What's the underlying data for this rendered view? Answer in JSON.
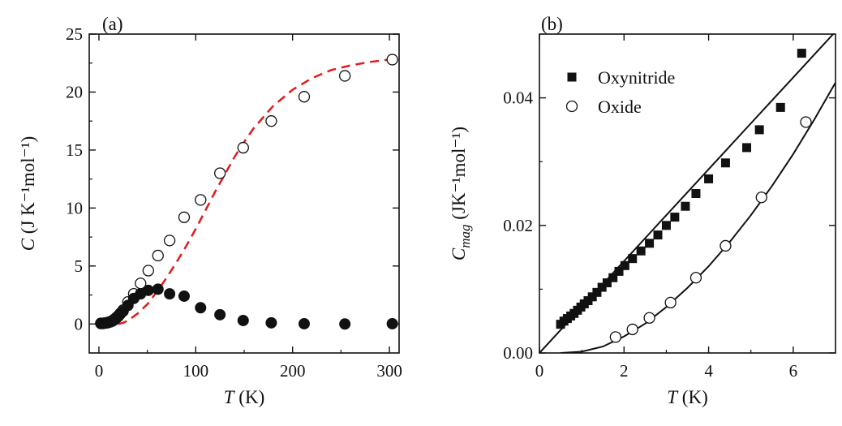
{
  "chart_data": [
    {
      "type": "scatter",
      "panel_label": "(a)",
      "xlabel": {
        "symbol": "T",
        "unit": "(K)"
      },
      "ylabel": {
        "symbol": "C",
        "unit": "(J K⁻¹mol⁻¹)"
      },
      "xlim": [
        -10,
        310
      ],
      "ylim": [
        -2.5,
        25
      ],
      "xticks": [
        0,
        100,
        200,
        300
      ],
      "xtick_labels": [
        "0",
        "100",
        "200",
        "300"
      ],
      "yticks": [
        0,
        5,
        10,
        15,
        20,
        25
      ],
      "ytick_labels": [
        "0",
        "5",
        "10",
        "15",
        "20",
        "25"
      ],
      "grid": false,
      "series": [
        {
          "marker": "open-circle",
          "x": [
            2,
            4,
            6,
            8,
            10,
            12,
            14,
            16,
            18,
            20,
            22,
            25,
            30,
            36,
            43,
            51,
            61,
            73,
            88,
            105,
            125,
            149,
            178,
            212,
            254,
            303
          ],
          "y": [
            0.05,
            0.05,
            0.08,
            0.1,
            0.15,
            0.2,
            0.28,
            0.4,
            0.55,
            0.7,
            0.9,
            1.2,
            1.9,
            2.6,
            3.5,
            4.6,
            5.9,
            7.2,
            9.2,
            10.7,
            13.0,
            15.2,
            17.5,
            19.6,
            21.4,
            22.8
          ]
        },
        {
          "marker": "filled-circle",
          "x": [
            2,
            4,
            6,
            8,
            10,
            12,
            14,
            16,
            18,
            20,
            22,
            25,
            30,
            36,
            43,
            51,
            61,
            73,
            88,
            105,
            125,
            149,
            178,
            212,
            254,
            303
          ],
          "y": [
            0.05,
            0.05,
            0.07,
            0.1,
            0.13,
            0.18,
            0.25,
            0.35,
            0.5,
            0.65,
            0.85,
            1.1,
            1.6,
            2.2,
            2.6,
            2.9,
            3.0,
            2.6,
            2.4,
            1.4,
            0.8,
            0.3,
            0.1,
            0.02,
            0.0,
            0.02
          ]
        },
        {
          "style": "dashed-line",
          "color": "#e31a1c",
          "x": [
            20,
            25,
            30,
            40,
            50,
            60,
            70,
            80,
            90,
            100,
            110,
            120,
            130,
            140,
            150,
            160,
            180,
            200,
            220,
            240,
            260,
            280,
            300
          ],
          "y": [
            0.0,
            0.1,
            0.3,
            0.9,
            1.7,
            2.8,
            4.0,
            5.3,
            6.7,
            8.2,
            9.8,
            11.4,
            12.9,
            14.4,
            15.7,
            16.9,
            18.8,
            20.2,
            21.2,
            21.9,
            22.3,
            22.6,
            22.8
          ]
        }
      ]
    },
    {
      "type": "scatter",
      "panel_label": "(b)",
      "xlabel": {
        "symbol": "T",
        "unit": "(K)"
      },
      "ylabel": {
        "symbol": "C",
        "subscript": "mag",
        "unit": "(JK⁻¹mol⁻¹)"
      },
      "xlim": [
        0,
        7
      ],
      "ylim": [
        0,
        0.05
      ],
      "xticks": [
        0,
        2,
        4,
        6
      ],
      "xtick_labels": [
        "0",
        "2",
        "4",
        "6"
      ],
      "yticks": [
        0,
        0.02,
        0.04
      ],
      "ytick_labels": [
        "0.00",
        "0.02",
        "0.04"
      ],
      "grid": false,
      "legend": {
        "position": "top-left",
        "entries": [
          "Oxynitride",
          "Oxide"
        ]
      },
      "series": [
        {
          "name": "Oxynitride",
          "marker": "filled-square",
          "x": [
            0.5,
            0.58,
            0.66,
            0.74,
            0.82,
            0.9,
            0.98,
            1.06,
            1.15,
            1.25,
            1.36,
            1.48,
            1.6,
            1.74,
            1.88,
            2.02,
            2.2,
            2.4,
            2.6,
            2.8,
            3.0,
            3.2,
            3.45,
            3.7,
            4.0,
            4.4,
            4.9,
            5.2,
            5.7,
            6.2
          ],
          "y": [
            0.0045,
            0.005,
            0.0054,
            0.0058,
            0.0062,
            0.0067,
            0.0072,
            0.0077,
            0.0082,
            0.0088,
            0.0095,
            0.0103,
            0.011,
            0.0118,
            0.0128,
            0.0137,
            0.0148,
            0.016,
            0.0172,
            0.0185,
            0.02,
            0.0213,
            0.023,
            0.025,
            0.0273,
            0.0298,
            0.0322,
            0.035,
            0.0385,
            0.047
          ]
        },
        {
          "name": "Oxide",
          "marker": "open-circle",
          "x": [
            1.8,
            2.2,
            2.6,
            3.1,
            3.7,
            4.4,
            5.25,
            6.3
          ],
          "y": [
            0.0025,
            0.0037,
            0.0055,
            0.0079,
            0.0118,
            0.0168,
            0.0244,
            0.0362
          ]
        },
        {
          "style": "solid-line",
          "x": [
            0,
            0.5,
            1,
            1.5,
            2,
            2.5,
            3,
            3.5,
            4,
            4.5,
            5,
            5.5,
            6,
            6.5,
            7
          ],
          "y": [
            0.0,
            0.0036,
            0.0072,
            0.0108,
            0.0144,
            0.018,
            0.0216,
            0.0252,
            0.0288,
            0.0324,
            0.036,
            0.0396,
            0.0432,
            0.0468,
            0.0504
          ]
        },
        {
          "style": "solid-line",
          "x": [
            0.5,
            1,
            1.5,
            2,
            2.5,
            3,
            3.5,
            4,
            4.5,
            5,
            5.5,
            6,
            6.5,
            7
          ],
          "y": [
            0.0,
            0.0002,
            0.001,
            0.0026,
            0.0046,
            0.0072,
            0.0102,
            0.0136,
            0.0174,
            0.0216,
            0.0262,
            0.0312,
            0.0366,
            0.0424
          ]
        }
      ]
    }
  ]
}
